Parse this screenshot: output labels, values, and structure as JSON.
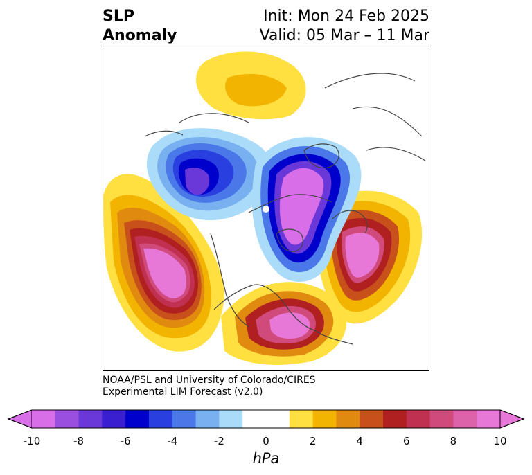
{
  "title": {
    "line1": "SLP",
    "line2": "Anomaly",
    "init": "Init: Mon 24 Feb 2025",
    "valid": "Valid: 05 Mar – 11 Mar"
  },
  "credit": {
    "line1": "NOAA/PSL and University of Colorado/CIRES",
    "line2": "Experimental LIM Forecast (v2.0)"
  },
  "colorbar": {
    "unit": "hPa",
    "ticks": [
      "-10",
      "-8",
      "-6",
      "-4",
      "-2",
      "0",
      "2",
      "4",
      "6",
      "8",
      "10"
    ],
    "colors": [
      "#d86fe8",
      "#9a4fdd",
      "#6a38d8",
      "#3a1fd0",
      "#0000cc",
      "#2a3fe0",
      "#4a78e8",
      "#78b0f0",
      "#aadcfa",
      "#ffffff",
      "#ffffff",
      "#ffe040",
      "#f2b400",
      "#e08a10",
      "#c8501a",
      "#b02020",
      "#c03050",
      "#d04a7c",
      "#dc62aa",
      "#e878d8"
    ],
    "extend": "both"
  }
}
